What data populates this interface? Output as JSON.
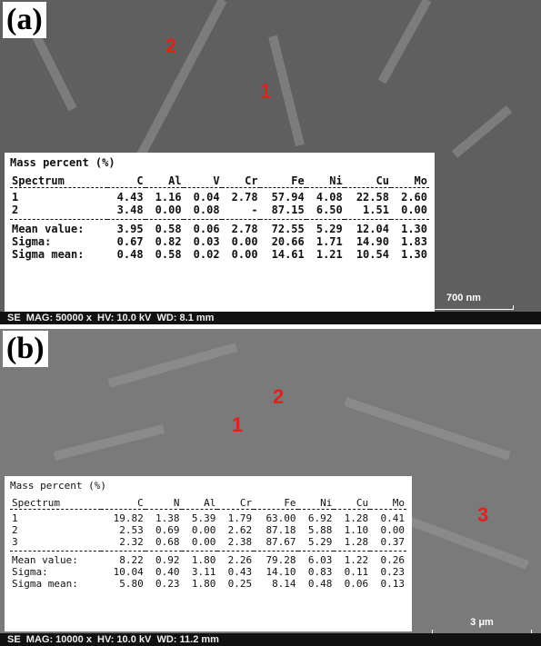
{
  "panels": [
    {
      "label": "(a)",
      "markers": [
        "2",
        "1"
      ],
      "table": {
        "title": "Mass percent (%)",
        "header": [
          "Spectrum",
          "C",
          "Al",
          "V",
          "Cr",
          "Fe",
          "Ni",
          "Cu",
          "Mo"
        ],
        "rows": [
          [
            "1",
            "4.43",
            "1.16",
            "0.04",
            "2.78",
            "57.94",
            "4.08",
            "22.58",
            "2.60"
          ],
          [
            "2",
            "3.48",
            "0.00",
            "0.08",
            "-",
            "87.15",
            "6.50",
            "1.51",
            "0.00"
          ]
        ],
        "stats": [
          [
            "Mean value:",
            "3.95",
            "0.58",
            "0.06",
            "2.78",
            "72.55",
            "5.29",
            "12.04",
            "1.30"
          ],
          [
            "Sigma:",
            "0.67",
            "0.82",
            "0.03",
            "0.00",
            "20.66",
            "1.71",
            "14.90",
            "1.83"
          ],
          [
            "Sigma mean:",
            "0.48",
            "0.58",
            "0.02",
            "0.00",
            "14.61",
            "1.21",
            "10.54",
            "1.30"
          ]
        ]
      },
      "scale_bar": "700 nm",
      "footer": "SE  MAG: 50000 x  HV: 10.0 kV  WD: 8.1 mm"
    },
    {
      "label": "(b)",
      "markers": [
        "2",
        "1",
        "3"
      ],
      "table": {
        "title": "Mass percent (%)",
        "header": [
          "Spectrum",
          "C",
          "N",
          "Al",
          "Cr",
          "Fe",
          "Ni",
          "Cu",
          "Mo"
        ],
        "rows": [
          [
            "1",
            "19.82",
            "1.38",
            "5.39",
            "1.79",
            "63.00",
            "6.92",
            "1.28",
            "0.41"
          ],
          [
            "2",
            "2.53",
            "0.69",
            "0.00",
            "2.62",
            "87.18",
            "5.88",
            "1.10",
            "0.00"
          ],
          [
            "3",
            "2.32",
            "0.68",
            "0.00",
            "2.38",
            "87.67",
            "5.29",
            "1.28",
            "0.37"
          ]
        ],
        "stats": [
          [
            "Mean value:",
            "8.22",
            "0.92",
            "1.80",
            "2.26",
            "79.28",
            "6.03",
            "1.22",
            "0.26"
          ],
          [
            "Sigma:",
            "10.04",
            "0.40",
            "3.11",
            "0.43",
            "14.10",
            "0.83",
            "0.11",
            "0.23"
          ],
          [
            "Sigma mean:",
            "5.80",
            "0.23",
            "1.80",
            "0.25",
            "8.14",
            "0.48",
            "0.06",
            "0.13"
          ]
        ]
      },
      "scale_bar": "3 μm",
      "footer": "SE  MAG: 10000 x  HV: 10.0 kV  WD: 11.2 mm"
    }
  ]
}
